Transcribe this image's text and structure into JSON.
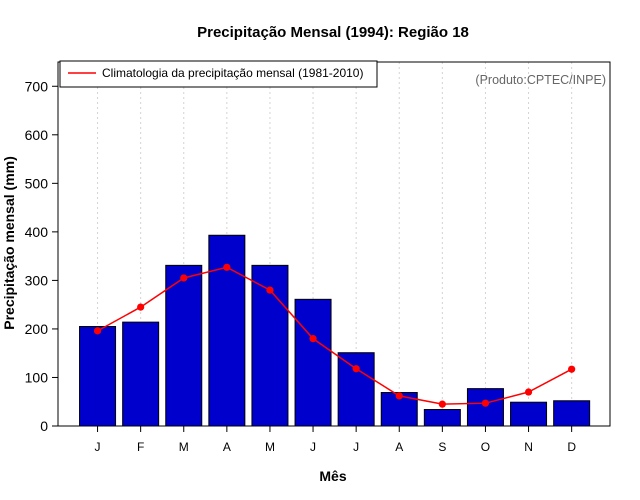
{
  "chart_data": {
    "type": "bar",
    "title": "Precipitação Mensal (1994): Região 18",
    "xlabel": "Mês",
    "ylabel": "Precipitação mensal (mm)",
    "ylim": [
      0,
      750
    ],
    "yticks": [
      0,
      100,
      200,
      300,
      400,
      500,
      600,
      700
    ],
    "categories": [
      "J",
      "F",
      "M",
      "A",
      "M",
      "J",
      "J",
      "A",
      "S",
      "O",
      "N",
      "D"
    ],
    "series": [
      {
        "name": "Precipitação mensal (1994)",
        "type": "bar",
        "color": "#0000CC",
        "values": [
          205,
          214,
          331,
          393,
          331,
          261,
          151,
          69,
          34,
          77,
          49,
          52
        ]
      },
      {
        "name": "Climatologia da precipitação mensal (1981-2010)",
        "type": "line",
        "color": "#FF0000",
        "values": [
          196,
          245,
          305,
          327,
          280,
          180,
          118,
          62,
          45,
          47,
          70,
          117
        ]
      }
    ],
    "legend": {
      "position": "top-left",
      "entries": [
        "Climatologia da precipitação mensal (1981-2010)"
      ]
    },
    "annotation": "(Produto:CPTEC/INPE)",
    "grid": "vertical dotted"
  }
}
